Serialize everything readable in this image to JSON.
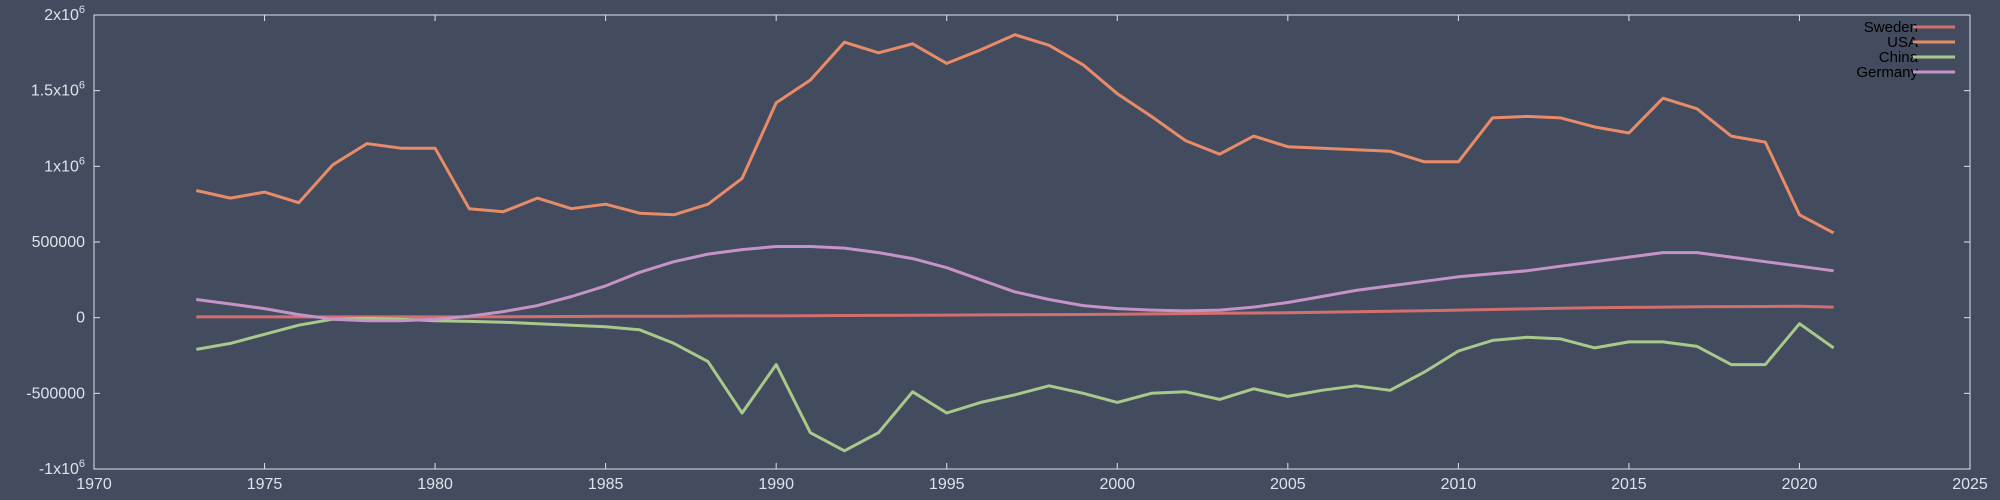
{
  "chart_data": {
    "type": "line",
    "title": "",
    "xlabel": "",
    "ylabel": "",
    "xlim": [
      1970,
      2025
    ],
    "ylim": [
      -1000000,
      2000000
    ],
    "grid": false,
    "legend_position": "top-right",
    "x_ticks": [
      1970,
      1975,
      1980,
      1985,
      1990,
      1995,
      2000,
      2005,
      2010,
      2015,
      2020,
      2025
    ],
    "x_tick_labels": [
      "1970",
      "1975",
      "1980",
      "1985",
      "1990",
      "1995",
      "2000",
      "2005",
      "2010",
      "2015",
      "2020",
      "2025"
    ],
    "y_ticks": [
      {
        "value": 2000000,
        "base": "2x10",
        "exp": "6"
      },
      {
        "value": 1500000,
        "base": "1.5x10",
        "exp": "6"
      },
      {
        "value": 1000000,
        "base": "1x10",
        "exp": "6"
      },
      {
        "value": 500000,
        "base": "500000",
        "exp": ""
      },
      {
        "value": 0,
        "base": "0",
        "exp": ""
      },
      {
        "value": -500000,
        "base": "-500000",
        "exp": ""
      },
      {
        "value": -1000000,
        "base": "-1x10",
        "exp": "6"
      }
    ],
    "x": [
      1973,
      1974,
      1975,
      1976,
      1977,
      1978,
      1979,
      1980,
      1981,
      1982,
      1983,
      1984,
      1985,
      1986,
      1987,
      1988,
      1989,
      1990,
      1991,
      1992,
      1993,
      1994,
      1995,
      1996,
      1997,
      1998,
      1999,
      2000,
      2001,
      2002,
      2003,
      2004,
      2005,
      2006,
      2007,
      2008,
      2009,
      2010,
      2011,
      2012,
      2013,
      2014,
      2015,
      2016,
      2017,
      2018,
      2019,
      2020,
      2021
    ],
    "series": [
      {
        "name": "Sweden",
        "color": "#d36f6f",
        "values": [
          5000,
          5000,
          5000,
          5000,
          5000,
          5000,
          5000,
          5000,
          5000,
          6000,
          7000,
          8000,
          9000,
          10000,
          10000,
          11000,
          12000,
          12000,
          13000,
          14000,
          15000,
          16000,
          17000,
          18000,
          19000,
          20000,
          21000,
          23000,
          25000,
          27000,
          29000,
          31000,
          33000,
          36000,
          39000,
          42000,
          46000,
          50000,
          54000,
          58000,
          62000,
          66000,
          68000,
          70000,
          72000,
          73000,
          74000,
          75000,
          70000
        ]
      },
      {
        "name": "USA",
        "color": "#e88b68",
        "values": [
          840000,
          790000,
          830000,
          760000,
          1010000,
          1150000,
          1120000,
          1120000,
          720000,
          700000,
          790000,
          720000,
          750000,
          690000,
          680000,
          750000,
          920000,
          1420000,
          1570000,
          1820000,
          1750000,
          1810000,
          1680000,
          1770000,
          1870000,
          1800000,
          1670000,
          1480000,
          1330000,
          1170000,
          1080000,
          1200000,
          1130000,
          1120000,
          1110000,
          1100000,
          1030000,
          1030000,
          1320000,
          1330000,
          1320000,
          1260000,
          1220000,
          1450000,
          1380000,
          1200000,
          1160000,
          680000,
          560000
        ]
      },
      {
        "name": "China",
        "color": "#a8c98b",
        "values": [
          -210000,
          -170000,
          -110000,
          -50000,
          -10000,
          -5000,
          -10000,
          -20000,
          -25000,
          -30000,
          -40000,
          -50000,
          -60000,
          -80000,
          -170000,
          -290000,
          -630000,
          -310000,
          -760000,
          -880000,
          -760000,
          -490000,
          -630000,
          -560000,
          -510000,
          -450000,
          -500000,
          -560000,
          -500000,
          -490000,
          -540000,
          -470000,
          -520000,
          -480000,
          -450000,
          -480000,
          -360000,
          -220000,
          -150000,
          -130000,
          -140000,
          -200000,
          -160000,
          -160000,
          -190000,
          -310000,
          -310000,
          -40000,
          -200000
        ]
      },
      {
        "name": "Germany",
        "color": "#c593c6",
        "values": [
          120000,
          90000,
          60000,
          20000,
          -10000,
          -20000,
          -20000,
          -10000,
          10000,
          40000,
          80000,
          140000,
          210000,
          300000,
          370000,
          420000,
          450000,
          470000,
          470000,
          460000,
          430000,
          390000,
          330000,
          250000,
          170000,
          120000,
          80000,
          60000,
          50000,
          45000,
          50000,
          70000,
          100000,
          140000,
          180000,
          210000,
          240000,
          270000,
          290000,
          310000,
          340000,
          370000,
          400000,
          430000,
          430000,
          400000,
          370000,
          340000,
          310000
        ]
      }
    ]
  }
}
